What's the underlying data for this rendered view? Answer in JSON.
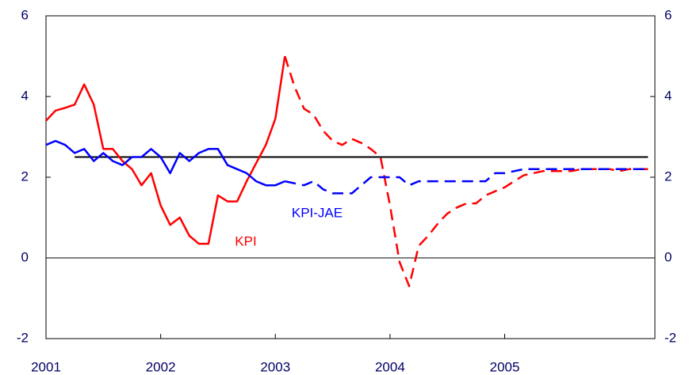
{
  "chart_data": {
    "type": "line",
    "x": [
      2001,
      2001.083,
      2001.167,
      2001.25,
      2001.333,
      2001.417,
      2001.5,
      2001.583,
      2001.667,
      2001.75,
      2001.833,
      2001.917,
      2002,
      2002.083,
      2002.167,
      2002.25,
      2002.333,
      2002.417,
      2002.5,
      2002.583,
      2002.667,
      2002.75,
      2002.833,
      2002.917,
      2003,
      2003.083,
      2003.167,
      2003.25,
      2003.333,
      2003.417,
      2003.5,
      2003.583,
      2003.667,
      2003.75,
      2003.833,
      2003.917,
      2004,
      2004.083,
      2004.167,
      2004.25,
      2004.333,
      2004.417,
      2004.5,
      2004.583,
      2004.667,
      2004.75,
      2004.833,
      2004.917,
      2005,
      2005.083,
      2005.167,
      2005.25,
      2005.333,
      2005.417,
      2005.5,
      2005.583,
      2005.667,
      2005.75,
      2005.833,
      2005.917,
      2006,
      2006.083,
      2006.167,
      2006.25
    ],
    "series": [
      {
        "name": "KPI",
        "color": "#ff0000",
        "values": [
          3.4,
          3.65,
          3.72,
          3.8,
          4.3,
          3.8,
          2.7,
          2.7,
          2.4,
          2.2,
          1.8,
          2.1,
          1.3,
          0.82,
          1.0,
          0.55,
          0.35,
          0.35,
          1.55,
          1.4,
          1.4,
          1.9,
          2.35,
          2.8,
          3.45,
          5.0,
          4.25,
          3.7,
          3.55,
          3.15,
          2.9,
          2.8,
          2.95,
          2.85,
          2.7,
          2.5,
          1.3,
          -0.1,
          -0.7,
          0.3,
          0.55,
          0.85,
          1.1,
          1.25,
          1.35,
          1.35,
          1.55,
          1.65,
          1.75,
          1.9,
          2.05,
          2.1,
          2.15,
          2.15,
          2.15,
          2.15,
          2.2,
          2.2,
          2.2,
          2.2,
          2.15,
          2.2,
          2.2,
          2.2
        ]
      },
      {
        "name": "KPI-JAE",
        "color": "#0000ff",
        "values": [
          2.8,
          2.9,
          2.8,
          2.6,
          2.7,
          2.4,
          2.6,
          2.4,
          2.3,
          2.5,
          2.5,
          2.7,
          2.5,
          2.1,
          2.6,
          2.4,
          2.6,
          2.7,
          2.7,
          2.3,
          2.2,
          2.1,
          1.9,
          1.8,
          1.8,
          1.9,
          1.85,
          1.8,
          1.9,
          1.7,
          1.6,
          1.6,
          1.6,
          1.8,
          2.0,
          2.0,
          2.0,
          2.0,
          1.8,
          1.9,
          1.9,
          1.9,
          1.9,
          1.9,
          1.9,
          1.9,
          1.9,
          2.1,
          2.1,
          2.15,
          2.2,
          2.2,
          2.2,
          2.2,
          2.2,
          2.2,
          2.2,
          2.2,
          2.2,
          2.2,
          2.2,
          2.2,
          2.2,
          2.2
        ]
      }
    ],
    "forecast_from": 2003.083,
    "target": {
      "value": 2.5,
      "x": [
        2001.25,
        2006.25
      ],
      "color": "#000000"
    },
    "xlim": [
      2001,
      2006.31
    ],
    "xticks": [
      2001,
      2002,
      2003,
      2004,
      2005
    ],
    "ylim": [
      -2,
      6
    ],
    "yticks": [
      -2,
      0,
      2,
      4,
      6
    ],
    "y2lim": [
      -2,
      6
    ],
    "y2ticks": [
      -2,
      0,
      2,
      4,
      6
    ],
    "grid_at": [
      0
    ]
  }
}
